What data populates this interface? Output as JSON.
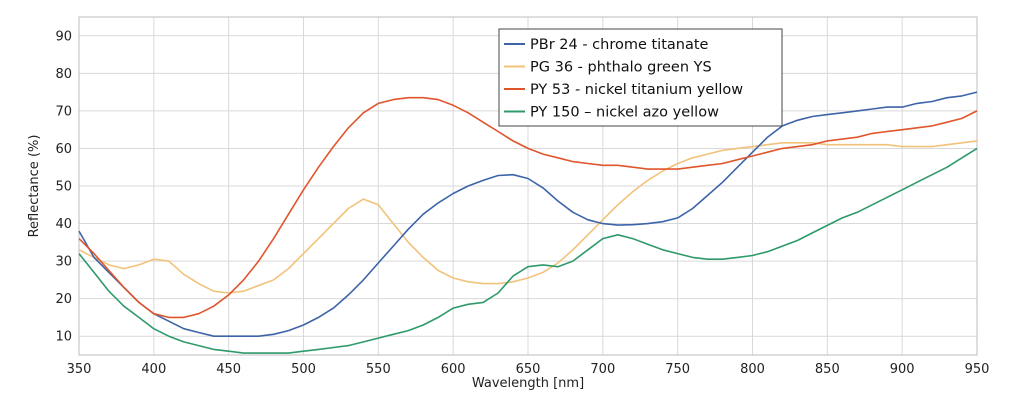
{
  "chart_data": {
    "type": "line",
    "xlabel": "Wavelength [nm]",
    "ylabel": "Reflectance (%)",
    "xlim": [
      350,
      950
    ],
    "ylim": [
      5,
      95
    ],
    "xticks": [
      350,
      400,
      450,
      500,
      550,
      600,
      650,
      700,
      750,
      800,
      850,
      900,
      950
    ],
    "yticks": [
      10,
      20,
      30,
      40,
      50,
      60,
      70,
      80,
      90
    ],
    "grid": true,
    "legend_position": "top-center",
    "series": [
      {
        "name": "PBr 24 - chrome titanate",
        "color": "#3d64a8",
        "points": [
          [
            350,
            38
          ],
          [
            360,
            31
          ],
          [
            370,
            27
          ],
          [
            380,
            23
          ],
          [
            390,
            19
          ],
          [
            400,
            16
          ],
          [
            410,
            14
          ],
          [
            420,
            12
          ],
          [
            430,
            11
          ],
          [
            440,
            10
          ],
          [
            450,
            10
          ],
          [
            460,
            10
          ],
          [
            470,
            10
          ],
          [
            480,
            10.5
          ],
          [
            490,
            11.5
          ],
          [
            500,
            13
          ],
          [
            510,
            15
          ],
          [
            520,
            17.5
          ],
          [
            530,
            21
          ],
          [
            540,
            25
          ],
          [
            550,
            29.5
          ],
          [
            560,
            34
          ],
          [
            570,
            38.5
          ],
          [
            580,
            42.5
          ],
          [
            590,
            45.5
          ],
          [
            600,
            48
          ],
          [
            610,
            50
          ],
          [
            620,
            51.5
          ],
          [
            630,
            52.8
          ],
          [
            640,
            53
          ],
          [
            650,
            52
          ],
          [
            660,
            49.5
          ],
          [
            670,
            46
          ],
          [
            680,
            43
          ],
          [
            690,
            41
          ],
          [
            700,
            40
          ],
          [
            710,
            39.6
          ],
          [
            720,
            39.7
          ],
          [
            730,
            40
          ],
          [
            740,
            40.5
          ],
          [
            750,
            41.5
          ],
          [
            760,
            44
          ],
          [
            770,
            47.5
          ],
          [
            780,
            51
          ],
          [
            790,
            55
          ],
          [
            800,
            59
          ],
          [
            810,
            63
          ],
          [
            820,
            66
          ],
          [
            830,
            67.5
          ],
          [
            840,
            68.5
          ],
          [
            850,
            69
          ],
          [
            860,
            69.5
          ],
          [
            870,
            70
          ],
          [
            880,
            70.5
          ],
          [
            890,
            71
          ],
          [
            900,
            71
          ],
          [
            910,
            72
          ],
          [
            920,
            72.5
          ],
          [
            930,
            73.5
          ],
          [
            940,
            74
          ],
          [
            950,
            75
          ]
        ]
      },
      {
        "name": "PG 36 - phthalo green YS",
        "color": "#f2c27a",
        "points": [
          [
            350,
            33
          ],
          [
            360,
            31
          ],
          [
            370,
            29
          ],
          [
            380,
            28
          ],
          [
            390,
            29
          ],
          [
            400,
            30.5
          ],
          [
            410,
            30
          ],
          [
            420,
            26.5
          ],
          [
            430,
            24
          ],
          [
            440,
            22
          ],
          [
            450,
            21.5
          ],
          [
            460,
            22
          ],
          [
            470,
            23.5
          ],
          [
            480,
            25
          ],
          [
            490,
            28
          ],
          [
            500,
            32
          ],
          [
            510,
            36
          ],
          [
            520,
            40
          ],
          [
            530,
            44
          ],
          [
            540,
            46.5
          ],
          [
            550,
            45
          ],
          [
            560,
            40
          ],
          [
            570,
            35
          ],
          [
            580,
            31
          ],
          [
            590,
            27.5
          ],
          [
            600,
            25.5
          ],
          [
            610,
            24.5
          ],
          [
            620,
            24
          ],
          [
            630,
            24
          ],
          [
            640,
            24.5
          ],
          [
            650,
            25.5
          ],
          [
            660,
            27
          ],
          [
            670,
            29.5
          ],
          [
            680,
            33
          ],
          [
            690,
            37
          ],
          [
            700,
            41
          ],
          [
            710,
            45
          ],
          [
            720,
            48.5
          ],
          [
            730,
            51.5
          ],
          [
            740,
            54
          ],
          [
            750,
            56
          ],
          [
            760,
            57.5
          ],
          [
            770,
            58.5
          ],
          [
            780,
            59.5
          ],
          [
            790,
            60
          ],
          [
            800,
            60.5
          ],
          [
            810,
            61
          ],
          [
            820,
            61.5
          ],
          [
            830,
            61.5
          ],
          [
            840,
            61.5
          ],
          [
            850,
            61
          ],
          [
            860,
            61
          ],
          [
            870,
            61
          ],
          [
            880,
            61
          ],
          [
            890,
            61
          ],
          [
            900,
            60.5
          ],
          [
            910,
            60.5
          ],
          [
            920,
            60.5
          ],
          [
            930,
            61
          ],
          [
            940,
            61.5
          ],
          [
            950,
            62
          ]
        ]
      },
      {
        "name": "PY 53 - nickel titanium yellow",
        "color": "#e0552b",
        "points": [
          [
            350,
            36
          ],
          [
            360,
            32
          ],
          [
            370,
            27.5
          ],
          [
            380,
            23
          ],
          [
            390,
            19
          ],
          [
            400,
            16
          ],
          [
            410,
            15
          ],
          [
            420,
            15
          ],
          [
            430,
            16
          ],
          [
            440,
            18
          ],
          [
            450,
            21
          ],
          [
            460,
            25
          ],
          [
            470,
            30
          ],
          [
            480,
            36
          ],
          [
            490,
            42.5
          ],
          [
            500,
            49
          ],
          [
            510,
            55
          ],
          [
            520,
            60.5
          ],
          [
            530,
            65.5
          ],
          [
            540,
            69.5
          ],
          [
            550,
            72
          ],
          [
            560,
            73
          ],
          [
            570,
            73.5
          ],
          [
            580,
            73.5
          ],
          [
            590,
            73
          ],
          [
            600,
            71.5
          ],
          [
            610,
            69.5
          ],
          [
            620,
            67
          ],
          [
            630,
            64.5
          ],
          [
            640,
            62
          ],
          [
            650,
            60
          ],
          [
            660,
            58.5
          ],
          [
            670,
            57.5
          ],
          [
            680,
            56.5
          ],
          [
            690,
            56
          ],
          [
            700,
            55.5
          ],
          [
            710,
            55.5
          ],
          [
            720,
            55
          ],
          [
            730,
            54.5
          ],
          [
            740,
            54.5
          ],
          [
            750,
            54.5
          ],
          [
            760,
            55
          ],
          [
            770,
            55.5
          ],
          [
            780,
            56
          ],
          [
            790,
            57
          ],
          [
            800,
            58
          ],
          [
            810,
            59
          ],
          [
            820,
            60
          ],
          [
            830,
            60.5
          ],
          [
            840,
            61
          ],
          [
            850,
            62
          ],
          [
            860,
            62.5
          ],
          [
            870,
            63
          ],
          [
            880,
            64
          ],
          [
            890,
            64.5
          ],
          [
            900,
            65
          ],
          [
            910,
            65.5
          ],
          [
            920,
            66
          ],
          [
            930,
            67
          ],
          [
            940,
            68
          ],
          [
            950,
            70
          ]
        ]
      },
      {
        "name": "PY 150 – nickel azo yellow",
        "color": "#2e9a6a",
        "points": [
          [
            350,
            32
          ],
          [
            360,
            27
          ],
          [
            370,
            22
          ],
          [
            380,
            18
          ],
          [
            390,
            15
          ],
          [
            400,
            12
          ],
          [
            410,
            10
          ],
          [
            420,
            8.5
          ],
          [
            430,
            7.5
          ],
          [
            440,
            6.5
          ],
          [
            450,
            6
          ],
          [
            460,
            5.5
          ],
          [
            470,
            5.5
          ],
          [
            480,
            5.5
          ],
          [
            490,
            5.5
          ],
          [
            500,
            6
          ],
          [
            510,
            6.5
          ],
          [
            520,
            7
          ],
          [
            530,
            7.5
          ],
          [
            540,
            8.5
          ],
          [
            550,
            9.5
          ],
          [
            560,
            10.5
          ],
          [
            570,
            11.5
          ],
          [
            580,
            13
          ],
          [
            590,
            15
          ],
          [
            600,
            17.5
          ],
          [
            610,
            18.5
          ],
          [
            620,
            19
          ],
          [
            630,
            21.5
          ],
          [
            640,
            26
          ],
          [
            650,
            28.5
          ],
          [
            660,
            29
          ],
          [
            670,
            28.5
          ],
          [
            680,
            30
          ],
          [
            690,
            33
          ],
          [
            700,
            36
          ],
          [
            710,
            37
          ],
          [
            720,
            36
          ],
          [
            730,
            34.5
          ],
          [
            740,
            33
          ],
          [
            750,
            32
          ],
          [
            760,
            31
          ],
          [
            770,
            30.5
          ],
          [
            780,
            30.5
          ],
          [
            790,
            31
          ],
          [
            800,
            31.5
          ],
          [
            810,
            32.5
          ],
          [
            820,
            34
          ],
          [
            830,
            35.5
          ],
          [
            840,
            37.5
          ],
          [
            850,
            39.5
          ],
          [
            860,
            41.5
          ],
          [
            870,
            43
          ],
          [
            880,
            45
          ],
          [
            890,
            47
          ],
          [
            900,
            49
          ],
          [
            910,
            51
          ],
          [
            920,
            53
          ],
          [
            930,
            55
          ],
          [
            940,
            57.5
          ],
          [
            950,
            60
          ]
        ]
      }
    ]
  }
}
